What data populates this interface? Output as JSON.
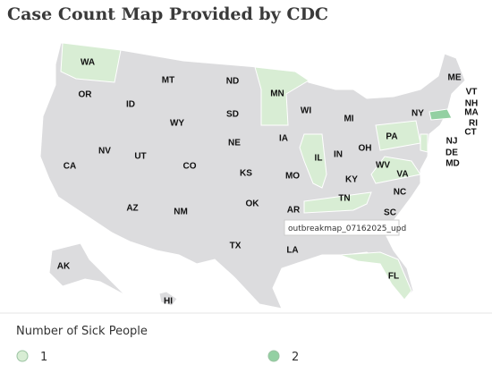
{
  "title": "Case Count Map Provided by CDC",
  "tooltip": "outbreakmap_07162025_upd",
  "legend": {
    "title": "Number of Sick People",
    "items": [
      {
        "value": 1,
        "color": "#d8edd4"
      },
      {
        "value": 2,
        "color": "#93d0a2"
      }
    ]
  },
  "states": [
    {
      "abbr": "WA",
      "cases": 1
    },
    {
      "abbr": "OR"
    },
    {
      "abbr": "ID"
    },
    {
      "abbr": "MT"
    },
    {
      "abbr": "WY"
    },
    {
      "abbr": "ND"
    },
    {
      "abbr": "SD"
    },
    {
      "abbr": "NE"
    },
    {
      "abbr": "MN",
      "cases": 1
    },
    {
      "abbr": "IA"
    },
    {
      "abbr": "WI"
    },
    {
      "abbr": "MI"
    },
    {
      "abbr": "IL",
      "cases": 1
    },
    {
      "abbr": "IN"
    },
    {
      "abbr": "OH"
    },
    {
      "abbr": "KY"
    },
    {
      "abbr": "TN",
      "cases": 1
    },
    {
      "abbr": "WV"
    },
    {
      "abbr": "VA",
      "cases": 1
    },
    {
      "abbr": "PA",
      "cases": 1
    },
    {
      "abbr": "NY"
    },
    {
      "abbr": "NV"
    },
    {
      "abbr": "UT"
    },
    {
      "abbr": "CO"
    },
    {
      "abbr": "KS"
    },
    {
      "abbr": "MO"
    },
    {
      "abbr": "CA"
    },
    {
      "abbr": "AZ"
    },
    {
      "abbr": "NM"
    },
    {
      "abbr": "OK"
    },
    {
      "abbr": "TX"
    },
    {
      "abbr": "AR"
    },
    {
      "abbr": "LA"
    },
    {
      "abbr": "NC"
    },
    {
      "abbr": "SC"
    },
    {
      "abbr": "FL",
      "cases": 1
    },
    {
      "abbr": "ME"
    },
    {
      "abbr": "VT"
    },
    {
      "abbr": "NH"
    },
    {
      "abbr": "MA",
      "cases": 2
    },
    {
      "abbr": "RI"
    },
    {
      "abbr": "CT"
    },
    {
      "abbr": "NJ",
      "cases": 1
    },
    {
      "abbr": "DE"
    },
    {
      "abbr": "MD"
    },
    {
      "abbr": "AK"
    },
    {
      "abbr": "HI"
    }
  ]
}
